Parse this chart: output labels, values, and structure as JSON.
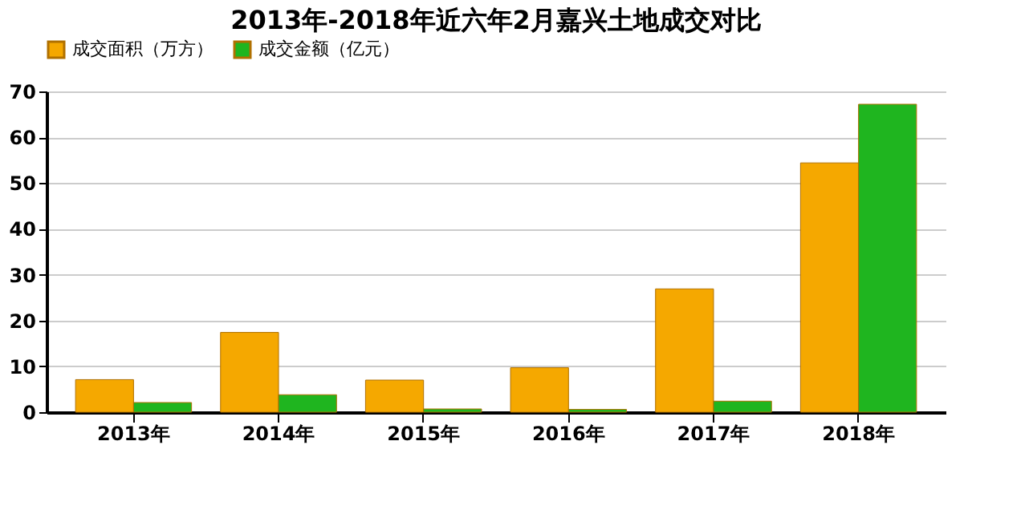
{
  "chart_data": {
    "type": "bar",
    "title": "2013年-2018年近六年2月嘉兴土地成交对比",
    "categories": [
      "2013年",
      "2014年",
      "2015年",
      "2016年",
      "2017年",
      "2018年"
    ],
    "series": [
      {
        "name": "成交面积（万方）",
        "color": "#f5a800",
        "values": [
          7.1,
          17.4,
          7.0,
          9.7,
          26.9,
          54.4
        ]
      },
      {
        "name": "成交金额（亿元）",
        "color": "#1fb51f",
        "values": [
          2.1,
          3.8,
          0.7,
          0.6,
          2.4,
          67.2
        ]
      }
    ],
    "ylim": [
      0,
      70
    ],
    "yticks": [
      0,
      10,
      20,
      30,
      40,
      50,
      60,
      70
    ],
    "grid": "y",
    "legend": "top"
  }
}
